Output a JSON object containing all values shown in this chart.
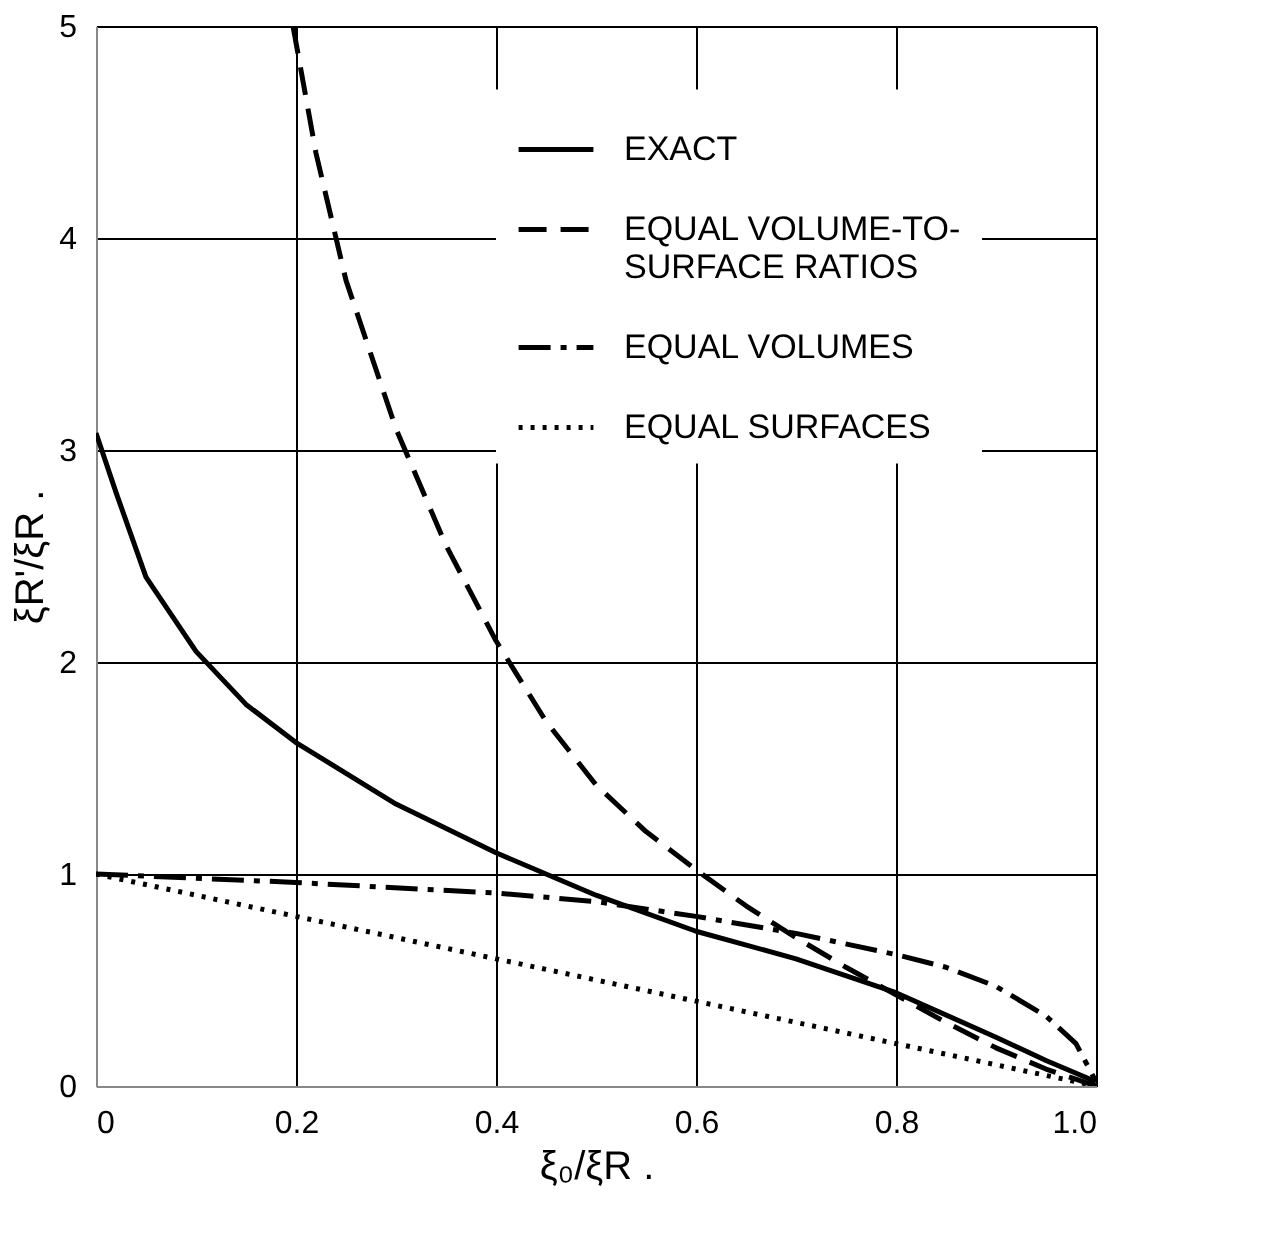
{
  "chart_data": {
    "type": "line",
    "xlabel": "ξ₀/ξR .",
    "ylabel": "ξR'/ξR .",
    "xlim": [
      0,
      1
    ],
    "ylim": [
      0,
      5
    ],
    "xticks": [
      {
        "value": 0,
        "label": "0"
      },
      0.2,
      0.4,
      0.6,
      0.8,
      {
        "value": 1,
        "label": "1.0"
      }
    ],
    "yticks": [
      0,
      1,
      2,
      3,
      4,
      5
    ],
    "grid": true,
    "legend": "top right",
    "marker": "none",
    "series": [
      {
        "name": "EXACT",
        "color": "#000000",
        "line_style": "solid",
        "x": [
          0,
          0.02,
          0.05,
          0.1,
          0.15,
          0.2,
          0.3,
          0.4,
          0.45,
          0.5,
          0.6,
          0.7,
          0.8,
          0.9,
          0.95,
          1.0
        ],
        "values": [
          3.08,
          2.8,
          2.4,
          2.05,
          1.8,
          1.62,
          1.33,
          1.1,
          1.0,
          0.9,
          0.73,
          0.6,
          0.44,
          0.23,
          0.12,
          0.02
        ]
      },
      {
        "name": "EQUAL VOLUME-TO-\nSURFACE RATIOS",
        "color": "#000000",
        "line_style": "dashed",
        "x": [
          0.197,
          0.22,
          0.25,
          0.3,
          0.35,
          0.4,
          0.45,
          0.5,
          0.55,
          0.6,
          0.65,
          0.7,
          0.75,
          0.8,
          0.85,
          0.9,
          0.95,
          1.0
        ],
        "values": [
          5.0,
          4.4,
          3.8,
          3.1,
          2.55,
          2.1,
          1.72,
          1.42,
          1.2,
          1.02,
          0.85,
          0.7,
          0.56,
          0.43,
          0.3,
          0.18,
          0.08,
          0.0
        ]
      },
      {
        "name": "EQUAL VOLUMES",
        "color": "#000000",
        "line_style": "dashdot",
        "x": [
          0,
          0.2,
          0.4,
          0.5,
          0.6,
          0.7,
          0.8,
          0.85,
          0.9,
          0.95,
          0.98,
          1.0
        ],
        "values": [
          1.0,
          0.96,
          0.91,
          0.87,
          0.8,
          0.72,
          0.62,
          0.56,
          0.47,
          0.33,
          0.2,
          0.02
        ]
      },
      {
        "name": "EQUAL SURFACES",
        "color": "#000000",
        "line_style": "dotted",
        "x": [
          0,
          1
        ],
        "values": [
          1.0,
          0.0
        ]
      }
    ]
  }
}
